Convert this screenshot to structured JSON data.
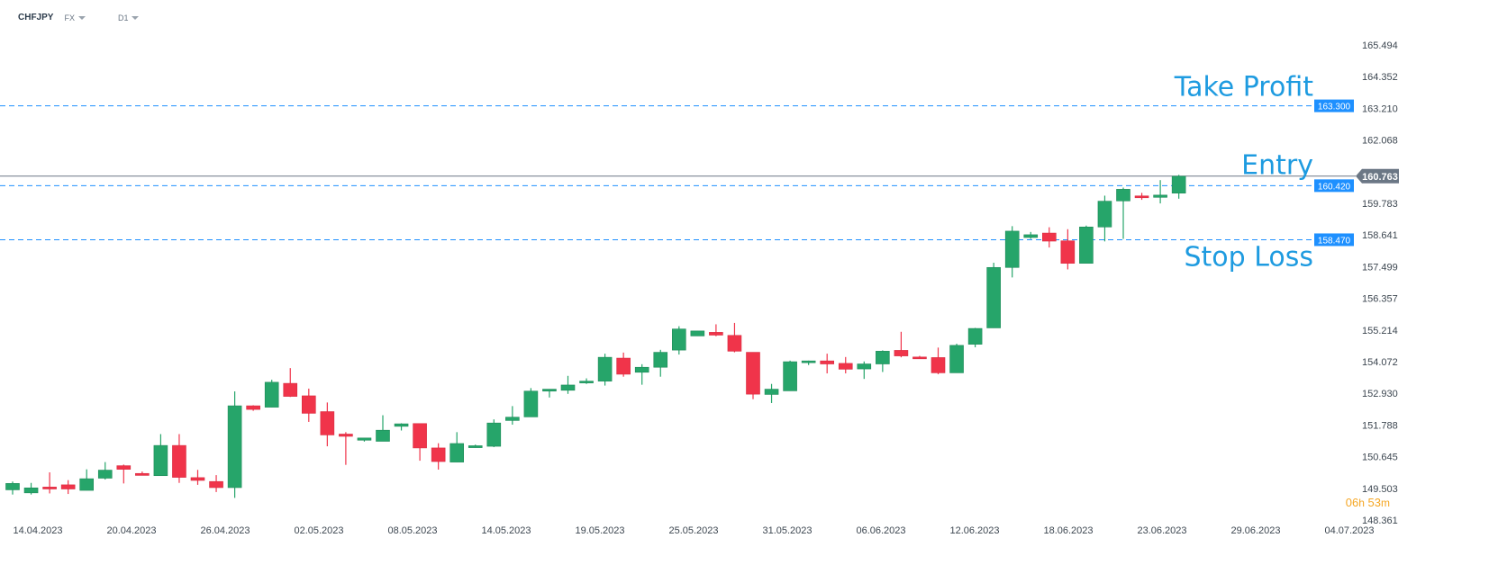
{
  "header": {
    "symbol": "CHFJPY",
    "market": "FX",
    "timeframe": "D1"
  },
  "countdown": {
    "hours": "06",
    "h_unit": "h",
    "minutes": "53",
    "m_unit": "m"
  },
  "colors": {
    "bull": "#26a56a",
    "bear": "#f0344a",
    "level": "#1e90ff",
    "label": "#1e9be0",
    "price_line": "#6b7785"
  },
  "chart_data": {
    "type": "candlestick",
    "symbol": "CHFJPY",
    "timeframe": "D1",
    "yticks": [
      148.361,
      149.503,
      150.645,
      151.788,
      152.93,
      154.072,
      155.214,
      156.357,
      157.499,
      158.641,
      159.783,
      162.068,
      163.21,
      164.352,
      165.494
    ],
    "ylim": [
      148.361,
      165.494
    ],
    "xtick_labels": [
      "14.04.2023",
      "20.04.2023",
      "26.04.2023",
      "02.05.2023",
      "08.05.2023",
      "14.05.2023",
      "19.05.2023",
      "25.05.2023",
      "31.05.2023",
      "06.06.2023",
      "12.06.2023",
      "18.06.2023",
      "23.06.2023",
      "29.06.2023",
      "04.07.2023"
    ],
    "current_price": 160.763,
    "levels": [
      {
        "name": "Take Profit",
        "value": 163.3,
        "label": "163.300"
      },
      {
        "name": "Entry",
        "value": 160.42,
        "label": "160.420"
      },
      {
        "name": "Stop Loss",
        "value": 158.47,
        "label": "158.470"
      }
    ],
    "candles": [
      {
        "o": 149.45,
        "h": 149.75,
        "l": 149.28,
        "c": 149.68
      },
      {
        "o": 149.34,
        "h": 149.7,
        "l": 149.28,
        "c": 149.52
      },
      {
        "o": 149.55,
        "h": 150.08,
        "l": 149.32,
        "c": 149.48
      },
      {
        "o": 149.63,
        "h": 149.8,
        "l": 149.3,
        "c": 149.48
      },
      {
        "o": 149.43,
        "h": 150.19,
        "l": 149.43,
        "c": 149.85
      },
      {
        "o": 149.87,
        "h": 150.45,
        "l": 149.82,
        "c": 150.16
      },
      {
        "o": 150.32,
        "h": 150.36,
        "l": 149.68,
        "c": 150.19
      },
      {
        "o": 150.04,
        "h": 150.11,
        "l": 149.98,
        "c": 149.97
      },
      {
        "o": 149.96,
        "h": 151.46,
        "l": 149.96,
        "c": 151.05
      },
      {
        "o": 151.05,
        "h": 151.46,
        "l": 149.7,
        "c": 149.9
      },
      {
        "o": 149.89,
        "h": 150.17,
        "l": 149.63,
        "c": 149.79
      },
      {
        "o": 149.75,
        "h": 149.98,
        "l": 149.37,
        "c": 149.53
      },
      {
        "o": 149.53,
        "h": 153.0,
        "l": 149.16,
        "c": 152.48
      },
      {
        "o": 152.48,
        "h": 152.5,
        "l": 152.3,
        "c": 152.35
      },
      {
        "o": 152.43,
        "h": 153.42,
        "l": 152.43,
        "c": 153.33
      },
      {
        "o": 153.29,
        "h": 153.84,
        "l": 152.8,
        "c": 152.82
      },
      {
        "o": 152.84,
        "h": 153.1,
        "l": 151.9,
        "c": 152.21
      },
      {
        "o": 152.27,
        "h": 152.6,
        "l": 151.02,
        "c": 151.43
      },
      {
        "o": 151.46,
        "h": 151.53,
        "l": 150.35,
        "c": 151.38
      },
      {
        "o": 151.24,
        "h": 151.32,
        "l": 151.19,
        "c": 151.32
      },
      {
        "o": 151.2,
        "h": 152.14,
        "l": 151.2,
        "c": 151.6
      },
      {
        "o": 151.74,
        "h": 151.85,
        "l": 151.59,
        "c": 151.83
      },
      {
        "o": 151.84,
        "h": 151.84,
        "l": 150.5,
        "c": 150.96
      },
      {
        "o": 150.96,
        "h": 151.13,
        "l": 150.18,
        "c": 150.47
      },
      {
        "o": 150.45,
        "h": 151.53,
        "l": 150.45,
        "c": 151.12
      },
      {
        "o": 150.97,
        "h": 151.08,
        "l": 150.97,
        "c": 151.04
      },
      {
        "o": 151.02,
        "h": 151.99,
        "l": 150.99,
        "c": 151.86
      },
      {
        "o": 151.95,
        "h": 152.47,
        "l": 151.8,
        "c": 152.07
      },
      {
        "o": 152.08,
        "h": 153.12,
        "l": 152.08,
        "c": 153.01
      },
      {
        "o": 153.01,
        "h": 153.08,
        "l": 152.78,
        "c": 153.08
      },
      {
        "o": 153.04,
        "h": 153.56,
        "l": 152.91,
        "c": 153.23
      },
      {
        "o": 153.31,
        "h": 153.47,
        "l": 153.27,
        "c": 153.37
      },
      {
        "o": 153.37,
        "h": 154.36,
        "l": 153.21,
        "c": 154.23
      },
      {
        "o": 154.2,
        "h": 154.4,
        "l": 153.53,
        "c": 153.62
      },
      {
        "o": 153.69,
        "h": 153.98,
        "l": 153.24,
        "c": 153.87
      },
      {
        "o": 153.87,
        "h": 154.5,
        "l": 153.53,
        "c": 154.41
      },
      {
        "o": 154.49,
        "h": 155.35,
        "l": 154.33,
        "c": 155.25
      },
      {
        "o": 155.0,
        "h": 155.18,
        "l": 155.0,
        "c": 155.18
      },
      {
        "o": 155.13,
        "h": 155.42,
        "l": 154.99,
        "c": 155.03
      },
      {
        "o": 155.02,
        "h": 155.47,
        "l": 154.41,
        "c": 154.45
      },
      {
        "o": 154.41,
        "h": 154.41,
        "l": 152.72,
        "c": 152.9
      },
      {
        "o": 152.89,
        "h": 153.27,
        "l": 152.58,
        "c": 153.08
      },
      {
        "o": 153.02,
        "h": 154.11,
        "l": 153.02,
        "c": 154.07
      },
      {
        "o": 154.05,
        "h": 154.11,
        "l": 153.95,
        "c": 154.1
      },
      {
        "o": 154.1,
        "h": 154.36,
        "l": 153.65,
        "c": 153.99
      },
      {
        "o": 154.01,
        "h": 154.24,
        "l": 153.65,
        "c": 153.8
      },
      {
        "o": 153.81,
        "h": 154.08,
        "l": 153.45,
        "c": 153.99
      },
      {
        "o": 153.99,
        "h": 154.48,
        "l": 153.7,
        "c": 154.45
      },
      {
        "o": 154.48,
        "h": 155.15,
        "l": 154.23,
        "c": 154.28
      },
      {
        "o": 154.24,
        "h": 154.28,
        "l": 154.2,
        "c": 154.22
      },
      {
        "o": 154.22,
        "h": 154.58,
        "l": 153.62,
        "c": 153.67
      },
      {
        "o": 153.67,
        "h": 154.72,
        "l": 153.67,
        "c": 154.66
      },
      {
        "o": 154.7,
        "h": 155.29,
        "l": 154.59,
        "c": 155.27
      },
      {
        "o": 155.29,
        "h": 157.64,
        "l": 155.29,
        "c": 157.47
      },
      {
        "o": 157.47,
        "h": 158.96,
        "l": 157.11,
        "c": 158.78
      },
      {
        "o": 158.55,
        "h": 158.75,
        "l": 158.5,
        "c": 158.65
      },
      {
        "o": 158.71,
        "h": 158.92,
        "l": 158.19,
        "c": 158.42
      },
      {
        "o": 158.43,
        "h": 158.85,
        "l": 157.4,
        "c": 157.62
      },
      {
        "o": 157.62,
        "h": 158.98,
        "l": 157.62,
        "c": 158.93
      },
      {
        "o": 158.93,
        "h": 160.06,
        "l": 158.41,
        "c": 159.86
      },
      {
        "o": 159.87,
        "h": 160.35,
        "l": 158.5,
        "c": 160.29
      },
      {
        "o": 160.05,
        "h": 160.16,
        "l": 159.91,
        "c": 160.03
      },
      {
        "o": 160.0,
        "h": 160.62,
        "l": 159.78,
        "c": 160.08
      },
      {
        "o": 160.15,
        "h": 160.81,
        "l": 159.95,
        "c": 160.76
      }
    ]
  }
}
